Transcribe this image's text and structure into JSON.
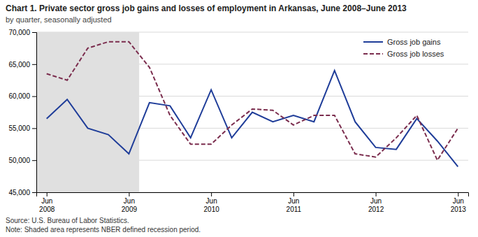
{
  "chart_data": {
    "type": "line",
    "title": "Chart 1. Private sector gross job gains and losses of employment in Arkansas, June 2008–June 2013",
    "subtitle": "by quarter, seasonally adjusted",
    "annotations": [
      "Source: U.S. Bureau of Labor Statistics.",
      "Note: Shaded area represents NBER defined recession period."
    ],
    "categories": [
      "Jun\n2008",
      null,
      null,
      null,
      "Jun\n2009",
      null,
      null,
      null,
      "Jun\n2010",
      null,
      null,
      null,
      "Jun\n2011",
      null,
      null,
      null,
      "Jun\n2012",
      null,
      null,
      null,
      "Jun\n2013"
    ],
    "series": [
      {
        "name": "Gross job gains",
        "color": "#1f3d99",
        "line_style": "solid",
        "values": [
          56500,
          59500,
          55000,
          54000,
          51000,
          59000,
          58500,
          53500,
          61000,
          53500,
          57500,
          56000,
          57000,
          56000,
          64000,
          56000,
          52000,
          51700,
          56500,
          53000,
          49000
        ]
      },
      {
        "name": "Gross job losses",
        "color": "#7b2d4e",
        "line_style": "dashed",
        "values": [
          63500,
          62500,
          67500,
          68500,
          68500,
          64500,
          57000,
          52500,
          52500,
          55500,
          58000,
          57800,
          55500,
          57000,
          57000,
          51000,
          50500,
          53500,
          57000,
          50000,
          55000
        ]
      }
    ],
    "shaded_span": {
      "from": 0,
      "to": 4,
      "color": "#e0e0e0"
    },
    "ylim": [
      45000,
      70000
    ],
    "yticks": [
      {
        "value": 45000,
        "label": "45,000"
      },
      {
        "value": 50000,
        "label": "50,000"
      },
      {
        "value": 55000,
        "label": "55,000"
      },
      {
        "value": 60000,
        "label": "60,000"
      },
      {
        "value": 65000,
        "label": "65,000"
      },
      {
        "value": 70000,
        "label": "70,000"
      }
    ],
    "grid": true,
    "legend": "upper right"
  }
}
